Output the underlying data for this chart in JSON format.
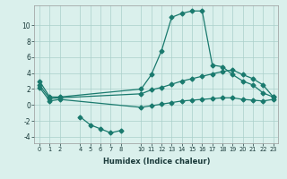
{
  "xlabel": "Humidex (Indice chaleur)",
  "bg_color": "#daf0ec",
  "line_color": "#1a7a6e",
  "grid_color": "#aacfca",
  "xlim": [
    -0.5,
    23.5
  ],
  "ylim": [
    -4.8,
    12.5
  ],
  "yticks": [
    -4,
    -2,
    0,
    2,
    4,
    6,
    8,
    10
  ],
  "xticks": [
    0,
    1,
    2,
    4,
    5,
    6,
    7,
    8,
    10,
    11,
    12,
    13,
    14,
    15,
    16,
    17,
    18,
    19,
    20,
    21,
    22,
    23
  ],
  "line1_x": [
    0,
    1,
    2,
    10,
    11,
    12,
    13,
    14,
    15,
    16,
    17,
    18,
    19,
    20,
    21,
    22,
    23
  ],
  "line1_y": [
    3.0,
    1.0,
    1.0,
    2.0,
    3.8,
    6.8,
    11.0,
    11.5,
    11.8,
    11.8,
    5.0,
    4.8,
    3.8,
    3.0,
    2.5,
    1.5,
    1.0
  ],
  "line2_x": [
    0,
    1,
    2,
    10,
    11,
    12,
    13,
    14,
    15,
    16,
    17,
    18,
    19,
    20,
    21,
    22,
    23
  ],
  "line2_y": [
    2.5,
    0.8,
    0.9,
    1.4,
    1.9,
    2.2,
    2.6,
    3.0,
    3.3,
    3.6,
    3.9,
    4.2,
    4.4,
    3.8,
    3.3,
    2.5,
    1.0
  ],
  "line3_x": [
    0,
    1,
    2,
    10,
    11,
    12,
    13,
    14,
    15,
    16,
    17,
    18,
    19,
    20,
    21,
    22,
    23
  ],
  "line3_y": [
    2.2,
    0.5,
    0.7,
    -0.3,
    -0.1,
    0.1,
    0.3,
    0.5,
    0.6,
    0.7,
    0.8,
    0.9,
    0.9,
    0.7,
    0.6,
    0.5,
    0.7
  ],
  "line4_x": [
    4,
    5,
    6,
    7,
    8
  ],
  "line4_y": [
    -1.5,
    -2.5,
    -3.0,
    -3.5,
    -3.2
  ]
}
